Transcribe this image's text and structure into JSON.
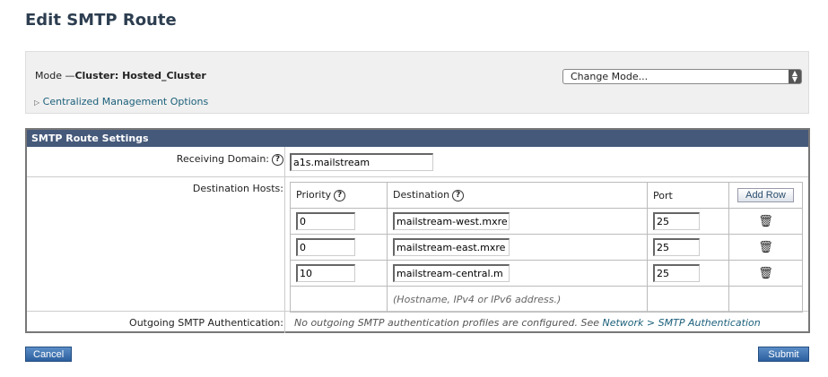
{
  "page": {
    "title": "Edit SMTP Route"
  },
  "mode": {
    "label": "Mode —",
    "value": "Cluster: Hosted_Cluster",
    "change_mode": "Change Mode...",
    "centralized": "Centralized Management Options"
  },
  "settings": {
    "header": "SMTP Route Settings",
    "receiving_domain_label": "Receiving Domain:",
    "receiving_domain_value": "a1s.mailstream",
    "destination_hosts_label": "Destination Hosts:",
    "columns": {
      "priority": "Priority",
      "destination": "Destination",
      "port": "Port",
      "add_row": "Add Row"
    },
    "hosts": [
      {
        "priority": "0",
        "destination": "mailstream-west.mxre",
        "port": "25"
      },
      {
        "priority": "0",
        "destination": "mailstream-east.mxre",
        "port": "25"
      },
      {
        "priority": "10",
        "destination": "mailstream-central.m",
        "port": "25"
      }
    ],
    "destination_hint": "(Hostname, IPv4 or IPv6 address.)",
    "outgoing_label": "Outgoing SMTP Authentication:",
    "outgoing_text": "No outgoing SMTP authentication profiles are configured. See",
    "outgoing_link": "Network > SMTP Authentication"
  },
  "buttons": {
    "cancel": "Cancel",
    "submit": "Submit"
  }
}
